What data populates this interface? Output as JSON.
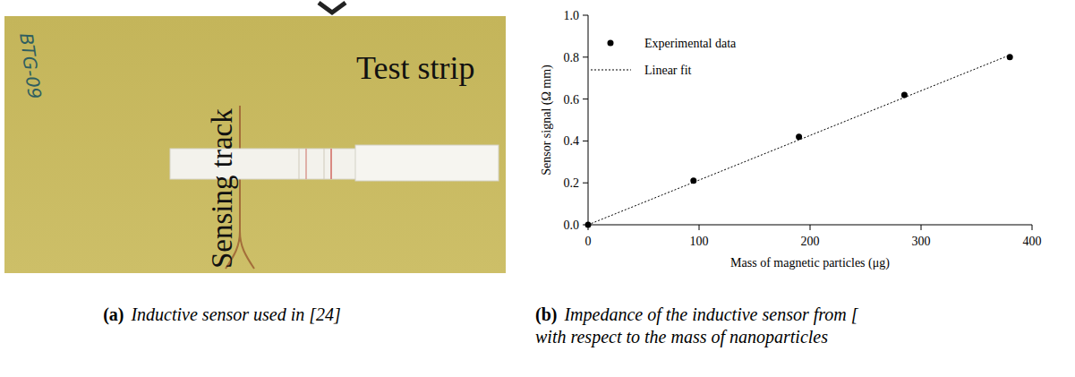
{
  "figure": {
    "panel_a": {
      "labels": [
        "BTG-09",
        "Sensing track",
        "Test strip"
      ],
      "caption_letter": "(a)",
      "caption": "Inductive sensor used in [24]"
    },
    "panel_b": {
      "caption_letter": "(b)",
      "caption_lines": [
        "Impedance of the inductive sensor from [",
        "with respect to the mass of nanoparticles"
      ]
    }
  },
  "chart_data": {
    "type": "scatter",
    "x_label": "Mass of magnetic particles (μg)",
    "y_label": "Sensor signal (Ω mm)",
    "xlim": [
      0,
      400
    ],
    "ylim": [
      0,
      1.0
    ],
    "xticks": [
      0,
      100,
      200,
      300,
      400
    ],
    "yticks": [
      {
        "value": 0,
        "label": "0.0"
      },
      {
        "value": 0.2,
        "label": "0.2"
      },
      {
        "value": 0.4,
        "label": "0.4"
      },
      {
        "value": 0.6,
        "label": "0.6"
      },
      {
        "value": 0.8,
        "label": "0.8"
      },
      {
        "value": 1.0,
        "label": "1.0"
      }
    ],
    "legend": "upper left",
    "grid": false,
    "series": [
      {
        "name": "Experimental data",
        "type": "scatter",
        "marker": "circle",
        "color": "#000000",
        "x": [
          0,
          95,
          190,
          285,
          380
        ],
        "values": [
          0,
          0.21,
          0.42,
          0.62,
          0.8
        ]
      },
      {
        "name": "Linear fit",
        "type": "line",
        "line_style": "dotted",
        "color": "#000000",
        "x": [
          0,
          380
        ],
        "values": [
          0,
          0.81
        ]
      }
    ]
  }
}
